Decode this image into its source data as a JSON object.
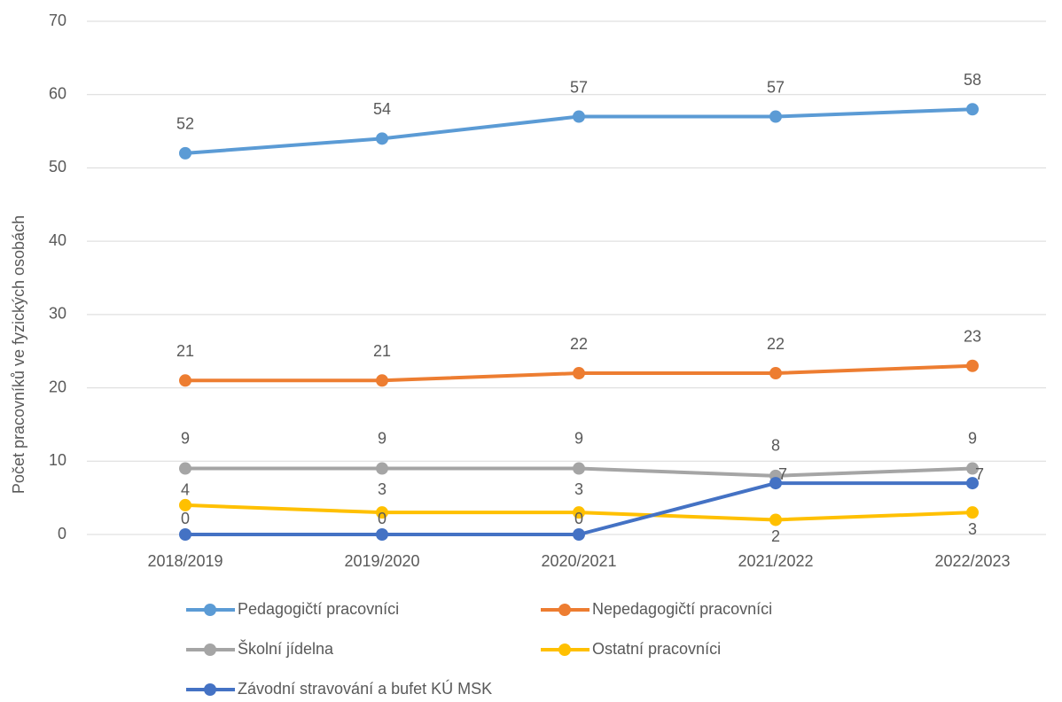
{
  "chart_data": {
    "type": "line",
    "y_axis_label": "Počet pracovníků ve fyzických osobách",
    "categories": [
      "2018/2019",
      "2019/2020",
      "2020/2021",
      "2021/2022",
      "2022/2023"
    ],
    "series": [
      {
        "name": "Pedagogičtí pracovníci",
        "color": "#5b9bd5",
        "values": [
          52,
          54,
          57,
          57,
          58
        ]
      },
      {
        "name": "Nepedagogičtí pracovníci",
        "color": "#ed7d31",
        "values": [
          21,
          21,
          22,
          22,
          23
        ]
      },
      {
        "name": "Školní jídelna",
        "color": "#a5a5a5",
        "values": [
          9,
          9,
          9,
          8,
          9
        ]
      },
      {
        "name": "Ostatní pracovníci",
        "color": "#ffc000",
        "values": [
          4,
          3,
          3,
          2,
          3
        ]
      },
      {
        "name": "Závodní stravování a bufet KÚ MSK",
        "color": "#4472c4",
        "values": [
          0,
          0,
          0,
          7,
          7
        ]
      }
    ],
    "ylim": [
      0,
      70
    ],
    "yticks": [
      0,
      10,
      20,
      30,
      40,
      50,
      60,
      70
    ],
    "grid": true,
    "legend": "bottom"
  }
}
